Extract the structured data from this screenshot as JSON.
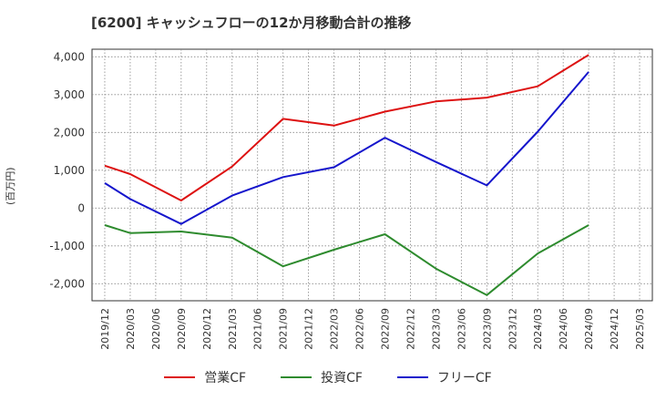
{
  "chart_data": {
    "type": "line",
    "title": "[6200]  キャッシュフローの12か月移動合計の推移",
    "ylabel": "(百万円)",
    "ylim": [
      -2450,
      4200
    ],
    "yticks": [
      4000,
      3000,
      2000,
      1000,
      0,
      -1000,
      -2000
    ],
    "ytick_labels": [
      "4,000",
      "3,000",
      "2,000",
      "1,000",
      "0",
      "-1,000",
      "-2,000"
    ],
    "x": [
      "2019/12",
      "2020/03",
      "2020/06",
      "2020/09",
      "2020/12",
      "2021/03",
      "2021/06",
      "2021/09",
      "2021/12",
      "2022/03",
      "2022/06",
      "2022/09",
      "2022/12",
      "2023/03",
      "2023/06",
      "2023/09",
      "2023/12",
      "2024/03",
      "2024/06",
      "2024/09",
      "2024/12",
      "2025/03"
    ],
    "grid": true,
    "legend_position": "bottom",
    "series": [
      {
        "name": "営業CF",
        "color": "#dd1111",
        "values": [
          1120,
          900,
          null,
          200,
          null,
          1100,
          null,
          2360,
          null,
          2180,
          null,
          2550,
          null,
          2820,
          null,
          2920,
          null,
          3220,
          null,
          4050,
          null,
          null
        ]
      },
      {
        "name": "投資CF",
        "color": "#2e8b2e",
        "values": [
          -450,
          -660,
          null,
          -620,
          null,
          -780,
          null,
          -1540,
          null,
          -1100,
          null,
          -690,
          null,
          -1600,
          null,
          -2300,
          null,
          -1200,
          null,
          -450,
          null,
          null
        ]
      },
      {
        "name": "フリーCF",
        "color": "#1515cc",
        "values": [
          660,
          240,
          null,
          -420,
          null,
          330,
          null,
          820,
          null,
          1080,
          null,
          1860,
          null,
          1220,
          null,
          600,
          null,
          2020,
          null,
          3600,
          null,
          null
        ]
      }
    ]
  }
}
